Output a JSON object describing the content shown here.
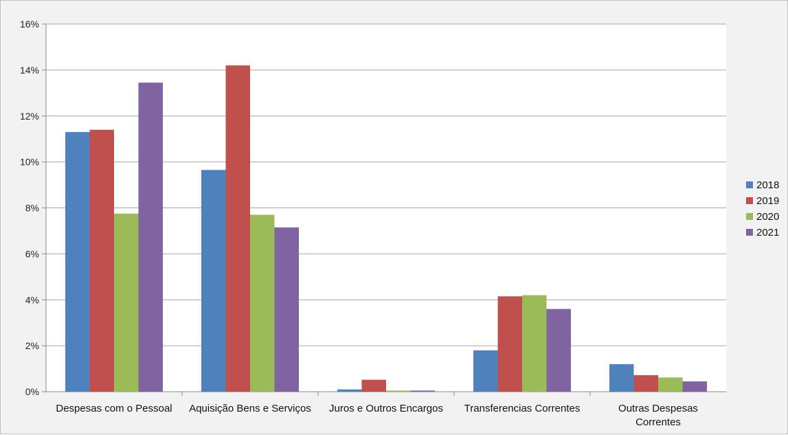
{
  "chart_data": {
    "type": "bar",
    "categories": [
      [
        "Despesas com o Pessoal"
      ],
      [
        "Aquisição Bens e Serviços"
      ],
      [
        "Juros e Outros Encargos"
      ],
      [
        "Transferencias Correntes"
      ],
      [
        "Outras Despesas",
        "Correntes"
      ]
    ],
    "series": [
      {
        "name": "2018",
        "color": "#4f81bd",
        "values": [
          11.3,
          9.65,
          0.1,
          1.8,
          1.2
        ]
      },
      {
        "name": "2019",
        "color": "#c0504d",
        "values": [
          11.4,
          14.2,
          0.52,
          4.15,
          0.72
        ]
      },
      {
        "name": "2020",
        "color": "#9bbb59",
        "values": [
          7.75,
          7.7,
          0.05,
          4.2,
          0.62
        ]
      },
      {
        "name": "2021",
        "color": "#8064a2",
        "values": [
          13.45,
          7.15,
          0.05,
          3.6,
          0.45
        ]
      }
    ],
    "y_ticks": [
      "0%",
      "2%",
      "4%",
      "6%",
      "8%",
      "10%",
      "12%",
      "14%",
      "16%"
    ],
    "ylim": [
      0,
      16
    ],
    "grid": true,
    "legend_position": "right"
  }
}
